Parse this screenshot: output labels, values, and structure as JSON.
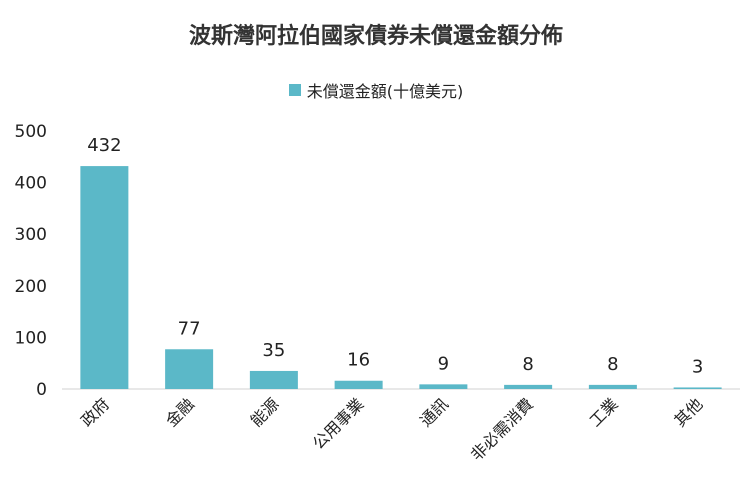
{
  "chart_data": {
    "type": "bar",
    "title": "波斯灣阿拉伯國家債券未償還金額分佈",
    "categories": [
      "政府",
      "金融",
      "能源",
      "公用事業",
      "通訊",
      "非必需消費",
      "工業",
      "其他"
    ],
    "series": [
      {
        "name": "未償還金額(十億美元)",
        "values": [
          432,
          77,
          35,
          16,
          9,
          8,
          8,
          3
        ],
        "color": "#5bb8c8"
      }
    ],
    "ylim": [
      0,
      500
    ],
    "yticks": [
      0,
      100,
      200,
      300,
      400,
      500
    ],
    "grid": false,
    "legend": "top-center"
  }
}
